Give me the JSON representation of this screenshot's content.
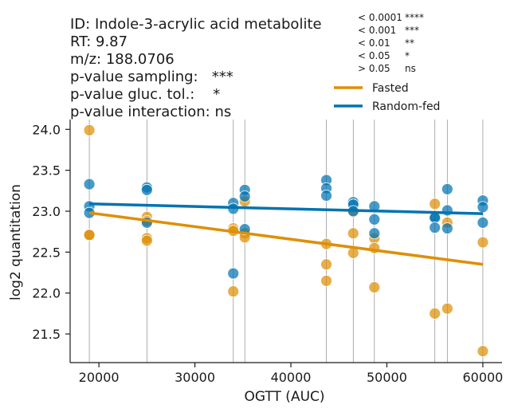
{
  "header": {
    "lines": [
      "ID: Indole-3-acrylic acid metabolite",
      "RT: 9.87",
      "m/z: 188.0706",
      "p-value sampling:   ***",
      "p-value gluc. tol.:    *",
      "p-value interaction: ns"
    ]
  },
  "significance_key": [
    {
      "threshold": "< 0.0001",
      "symbol": "****"
    },
    {
      "threshold": "< 0.001",
      "symbol": "***"
    },
    {
      "threshold": "< 0.01",
      "symbol": "**"
    },
    {
      "threshold": "< 0.05",
      "symbol": "*"
    },
    {
      "threshold": "> 0.05",
      "symbol": "ns"
    }
  ],
  "colors": {
    "fasted": "#de8f05",
    "random_fed": "#0173b2",
    "vline": "#999999",
    "axis": "#1a1a1a"
  },
  "chart_data": {
    "type": "scatter",
    "xlabel": "OGTT (AUC)",
    "ylabel": "log2 quantitation",
    "xlim": [
      17000,
      62000
    ],
    "ylim": [
      21.15,
      24.12
    ],
    "xticks": [
      20000,
      30000,
      40000,
      50000,
      60000
    ],
    "yticks": [
      21.5,
      22.0,
      22.5,
      23.0,
      23.5,
      24.0
    ],
    "vertical_lines": [
      19000,
      25000,
      34000,
      35200,
      43700,
      46500,
      48700,
      55000,
      56300,
      60000
    ],
    "legend_position": "top-right",
    "series": [
      {
        "name": "Fasted",
        "color_key": "fasted",
        "points": [
          [
            19000,
            23.99
          ],
          [
            19000,
            22.71
          ],
          [
            19000,
            22.71
          ],
          [
            25000,
            22.93
          ],
          [
            25000,
            22.88
          ],
          [
            25000,
            22.67
          ],
          [
            25000,
            22.64
          ],
          [
            34000,
            22.79
          ],
          [
            34000,
            22.76
          ],
          [
            34000,
            22.02
          ],
          [
            35200,
            23.12
          ],
          [
            35200,
            22.73
          ],
          [
            35200,
            22.68
          ],
          [
            43700,
            22.6
          ],
          [
            43700,
            22.35
          ],
          [
            43700,
            22.15
          ],
          [
            46500,
            22.99
          ],
          [
            46500,
            22.73
          ],
          [
            46500,
            22.49
          ],
          [
            48700,
            22.67
          ],
          [
            48700,
            22.55
          ],
          [
            48700,
            22.07
          ],
          [
            55000,
            23.09
          ],
          [
            55000,
            21.75
          ],
          [
            56300,
            22.86
          ],
          [
            56300,
            21.81
          ],
          [
            60000,
            22.62
          ],
          [
            60000,
            21.29
          ]
        ],
        "trend": [
          [
            19000,
            22.98
          ],
          [
            60000,
            22.35
          ]
        ]
      },
      {
        "name": "Random-fed",
        "color_key": "random_fed",
        "points": [
          [
            19000,
            23.33
          ],
          [
            19000,
            23.06
          ],
          [
            19000,
            22.98
          ],
          [
            25000,
            23.29
          ],
          [
            25000,
            23.26
          ],
          [
            25000,
            22.86
          ],
          [
            34000,
            23.1
          ],
          [
            34000,
            23.03
          ],
          [
            34000,
            22.24
          ],
          [
            35200,
            23.26
          ],
          [
            35200,
            23.18
          ],
          [
            35200,
            22.78
          ],
          [
            43700,
            23.38
          ],
          [
            43700,
            23.28
          ],
          [
            43700,
            23.19
          ],
          [
            46500,
            23.11
          ],
          [
            46500,
            23.08
          ],
          [
            46500,
            23.0
          ],
          [
            48700,
            23.06
          ],
          [
            48700,
            22.9
          ],
          [
            48700,
            22.73
          ],
          [
            55000,
            22.93
          ],
          [
            55000,
            22.92
          ],
          [
            55000,
            22.8
          ],
          [
            56300,
            23.27
          ],
          [
            56300,
            23.01
          ],
          [
            56300,
            22.79
          ],
          [
            60000,
            23.13
          ],
          [
            60000,
            23.05
          ],
          [
            60000,
            22.86
          ]
        ],
        "trend": [
          [
            19000,
            23.09
          ],
          [
            60000,
            22.97
          ]
        ]
      }
    ]
  }
}
